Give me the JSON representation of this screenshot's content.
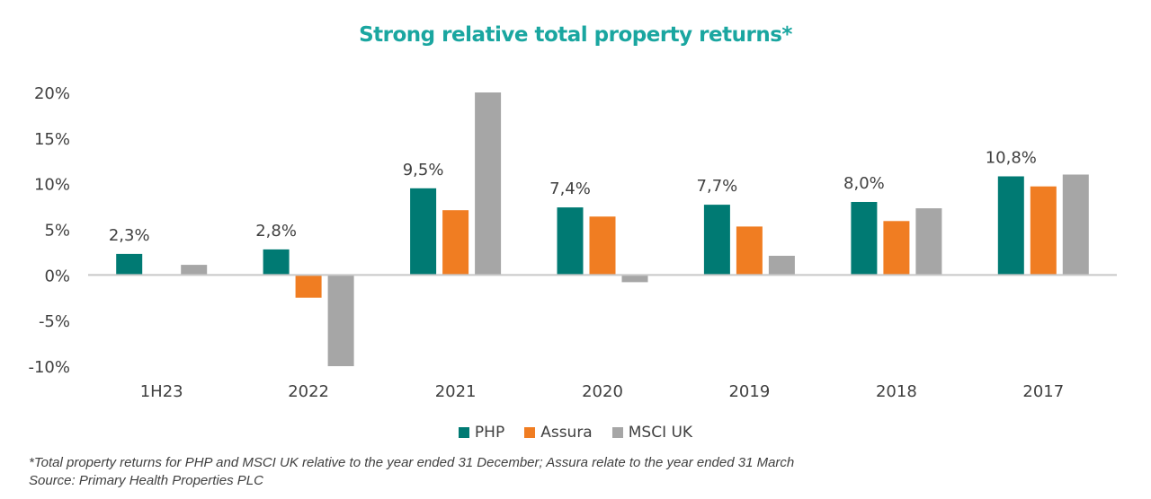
{
  "chart_data": {
    "type": "bar",
    "title": "Strong relative total property returns*",
    "categories": [
      "1H23",
      "2022",
      "2021",
      "2020",
      "2019",
      "2018",
      "2017"
    ],
    "series": [
      {
        "name": "PHP",
        "color": "#007a73",
        "values": [
          2.3,
          2.8,
          9.5,
          7.4,
          7.7,
          8.0,
          10.8
        ]
      },
      {
        "name": "Assura",
        "color": "#f07d22",
        "values": [
          null,
          -2.5,
          7.1,
          6.4,
          5.3,
          5.9,
          9.7
        ]
      },
      {
        "name": "MSCI UK",
        "color": "#a6a6a6",
        "values": [
          1.1,
          -10.0,
          20.0,
          -0.8,
          2.1,
          7.3,
          11.0
        ]
      }
    ],
    "data_labels": [
      "2,3%",
      "2,8%",
      "9,5%",
      "7,4%",
      "7,7%",
      "8,0%",
      "10,8%"
    ],
    "y_ticks": [
      "20%",
      "15%",
      "10%",
      "5%",
      "0%",
      "-5%",
      "-10%"
    ],
    "ylim": [
      -10,
      20
    ],
    "grid": false,
    "legend_position": "bottom"
  },
  "footnotes": {
    "line1": "*Total property returns for PHP and MSCI UK relative to the year ended 31 December; Assura relate to the year ended 31 March",
    "line2": "Source: Primary Health Properties PLC"
  }
}
